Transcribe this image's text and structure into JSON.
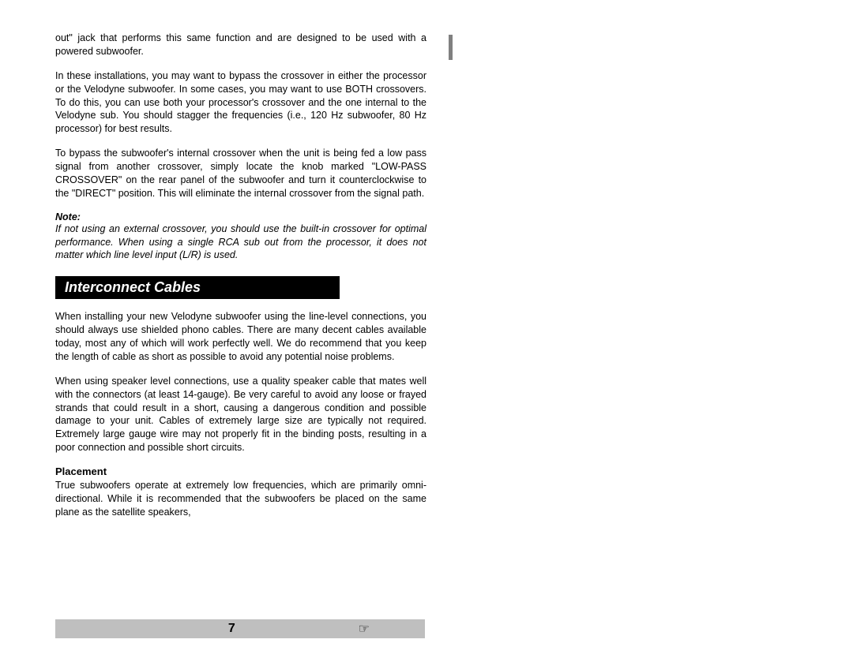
{
  "paragraphs": {
    "p1": "out\" jack that performs this same function and are designed to be used with a powered subwoofer.",
    "p2": "In these installations, you may want to bypass the crossover in either the processor or the Velodyne subwoofer.  In some cases, you may want to use BOTH crossovers.  To do this, you can use both your processor's crossover and the one internal to the Velodyne sub.  You should stagger the frequencies (i.e., 120 Hz subwoofer, 80 Hz processor) for best results.",
    "p3": "To bypass the subwoofer's internal crossover when the unit is being fed a low pass signal from another crossover, simply locate the knob marked \"LOW-PASS CROSSOVER\" on the rear panel of the subwoofer and turn it counterclockwise to the \"DIRECT\" position.  This will eliminate the internal crossover from the signal path.",
    "note_label": "Note:",
    "note_text": "If not using an external crossover, you should use the built-in crossover for optimal performance.  When using a single RCA sub out from the processor, it does not matter which line level input (L/R) is used.",
    "section_header": "Interconnect Cables",
    "p4": "When installing your new Velodyne subwoofer using the line-level connections, you should always use shielded phono cables.  There are many decent cables available today, most any of which will work perfectly well.  We do recommend that you keep the length of cable as short as possible to avoid any potential noise problems.",
    "p5": "When using speaker level connections, use a quality speaker cable that mates well with the connectors (at least 14-gauge).  Be very careful to avoid any loose or frayed strands that could result in a short, causing a dangerous condition and possible damage to your unit.  Cables of extremely large size are typically not required.  Extremely large gauge wire may not properly fit in the binding posts, resulting in a poor connection and possible short circuits.",
    "subheading": "Placement",
    "p6": "True subwoofers operate at extremely low frequencies, which are primarily omni-directional.  While it is recommended that the subwoofers be placed on the same plane as the satellite speakers,"
  },
  "footer": {
    "page_number": "7",
    "hand_icon": "☞"
  },
  "colors": {
    "footer_bg": "#bfbfbf",
    "header_bg": "#000000",
    "header_text": "#ffffff",
    "bar_color": "#808080"
  }
}
